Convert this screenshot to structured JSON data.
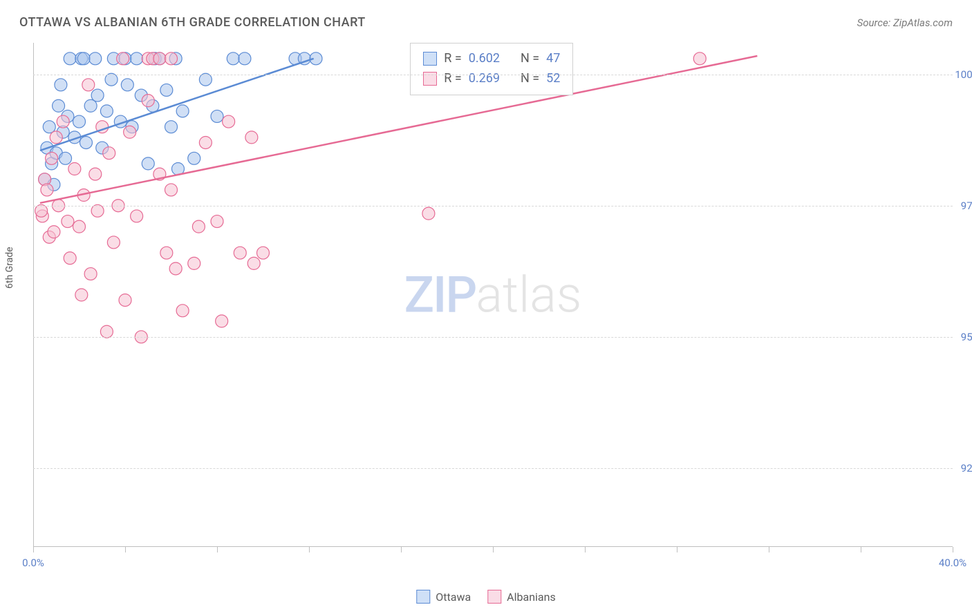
{
  "header": {
    "title": "OTTAWA VS ALBANIAN 6TH GRADE CORRELATION CHART",
    "source": "Source: ZipAtlas.com"
  },
  "chart": {
    "type": "scatter",
    "y_label": "6th Grade",
    "watermark": {
      "zip": "ZIP",
      "atlas": "atlas"
    },
    "background_color": "#ffffff",
    "grid_color": "#d8d8d8",
    "axis_color": "#bfbfbf",
    "tick_label_color": "#5b7fc7",
    "text_color": "#5a5a5a",
    "xlim": [
      0,
      40
    ],
    "ylim": [
      91,
      100.6
    ],
    "x_ticks": [
      0,
      4,
      8,
      12,
      16,
      20,
      24,
      28,
      32,
      36,
      40
    ],
    "x_tick_labels": {
      "0": "0.0%",
      "40": "40.0%"
    },
    "y_ticks": [
      92.5,
      95.0,
      97.5,
      100.0
    ],
    "y_tick_labels": [
      "92.5%",
      "95.0%",
      "97.5%",
      "100.0%"
    ],
    "marker_radius": 9,
    "marker_opacity": 0.55,
    "series": [
      {
        "name": "Ottawa",
        "fill": "#a9c4ec",
        "stroke": "#5b8bd4",
        "swatch_fill": "#cfe0f7",
        "swatch_stroke": "#5b8bd4",
        "r_label": "R =",
        "r_value": "0.602",
        "n_label": "N =",
        "n_value": "47",
        "trend": {
          "x1": 0.3,
          "y1": 98.55,
          "x2": 12.2,
          "y2": 100.3
        },
        "points": [
          [
            0.5,
            98.0
          ],
          [
            0.6,
            98.6
          ],
          [
            0.7,
            99.0
          ],
          [
            0.8,
            98.3
          ],
          [
            0.9,
            97.9
          ],
          [
            1.0,
            98.5
          ],
          [
            1.1,
            99.4
          ],
          [
            1.2,
            99.8
          ],
          [
            1.3,
            98.9
          ],
          [
            1.4,
            98.4
          ],
          [
            1.5,
            99.2
          ],
          [
            1.6,
            100.3
          ],
          [
            1.8,
            98.8
          ],
          [
            2.0,
            99.1
          ],
          [
            2.1,
            100.3
          ],
          [
            2.2,
            100.3
          ],
          [
            2.3,
            98.7
          ],
          [
            2.5,
            99.4
          ],
          [
            2.7,
            100.3
          ],
          [
            2.8,
            99.6
          ],
          [
            3.0,
            98.6
          ],
          [
            3.2,
            99.3
          ],
          [
            3.4,
            99.9
          ],
          [
            3.5,
            100.3
          ],
          [
            3.8,
            99.1
          ],
          [
            4.0,
            100.3
          ],
          [
            4.1,
            99.8
          ],
          [
            4.3,
            99.0
          ],
          [
            4.5,
            100.3
          ],
          [
            4.7,
            99.6
          ],
          [
            5.0,
            98.3
          ],
          [
            5.2,
            99.4
          ],
          [
            5.3,
            100.3
          ],
          [
            5.5,
            100.3
          ],
          [
            5.8,
            99.7
          ],
          [
            6.0,
            99.0
          ],
          [
            6.2,
            100.3
          ],
          [
            6.3,
            98.2
          ],
          [
            6.5,
            99.3
          ],
          [
            7.0,
            98.4
          ],
          [
            7.5,
            99.9
          ],
          [
            8.0,
            99.2
          ],
          [
            8.7,
            100.3
          ],
          [
            9.2,
            100.3
          ],
          [
            11.4,
            100.3
          ],
          [
            11.8,
            100.3
          ],
          [
            12.3,
            100.3
          ]
        ]
      },
      {
        "name": "Albanians",
        "fill": "#f5c1d1",
        "stroke": "#e66a94",
        "swatch_fill": "#fadce6",
        "swatch_stroke": "#e66a94",
        "r_label": "R =",
        "r_value": "0.269",
        "n_label": "N =",
        "n_value": "52",
        "trend": {
          "x1": 0.3,
          "y1": 97.55,
          "x2": 31.5,
          "y2": 100.35
        },
        "points": [
          [
            0.4,
            97.3
          ],
          [
            0.5,
            98.0
          ],
          [
            0.6,
            97.8
          ],
          [
            0.7,
            96.9
          ],
          [
            0.8,
            98.4
          ],
          [
            0.9,
            97.0
          ],
          [
            1.0,
            98.8
          ],
          [
            1.1,
            97.5
          ],
          [
            1.3,
            99.1
          ],
          [
            1.5,
            97.2
          ],
          [
            1.6,
            96.5
          ],
          [
            1.8,
            98.2
          ],
          [
            2.0,
            97.1
          ],
          [
            2.1,
            95.8
          ],
          [
            2.2,
            97.7
          ],
          [
            2.4,
            99.8
          ],
          [
            2.5,
            96.2
          ],
          [
            2.7,
            98.1
          ],
          [
            2.8,
            97.4
          ],
          [
            3.0,
            99.0
          ],
          [
            3.2,
            95.1
          ],
          [
            3.3,
            98.5
          ],
          [
            3.5,
            96.8
          ],
          [
            3.7,
            97.5
          ],
          [
            3.9,
            100.3
          ],
          [
            4.0,
            95.7
          ],
          [
            4.2,
            98.9
          ],
          [
            4.5,
            97.3
          ],
          [
            4.7,
            95.0
          ],
          [
            5.0,
            99.5
          ],
          [
            5.0,
            100.3
          ],
          [
            5.2,
            100.3
          ],
          [
            5.5,
            100.3
          ],
          [
            5.5,
            98.1
          ],
          [
            5.8,
            96.6
          ],
          [
            6.0,
            97.8
          ],
          [
            6.0,
            100.3
          ],
          [
            6.2,
            96.3
          ],
          [
            6.5,
            95.5
          ],
          [
            7.0,
            96.4
          ],
          [
            7.2,
            97.1
          ],
          [
            7.5,
            98.7
          ],
          [
            8.0,
            97.2
          ],
          [
            8.2,
            95.3
          ],
          [
            8.5,
            99.1
          ],
          [
            9.0,
            96.6
          ],
          [
            9.5,
            98.8
          ],
          [
            9.6,
            96.4
          ],
          [
            10.0,
            96.6
          ],
          [
            17.2,
            97.35
          ],
          [
            29.0,
            100.3
          ],
          [
            0.35,
            97.4
          ]
        ]
      }
    ],
    "stats_box": {
      "left_pct": 41,
      "top_pct": 0
    },
    "bottom_legend": [
      {
        "label": "Ottawa",
        "swatch_fill": "#cfe0f7",
        "swatch_stroke": "#5b8bd4"
      },
      {
        "label": "Albanians",
        "swatch_fill": "#fadce6",
        "swatch_stroke": "#e66a94"
      }
    ]
  }
}
